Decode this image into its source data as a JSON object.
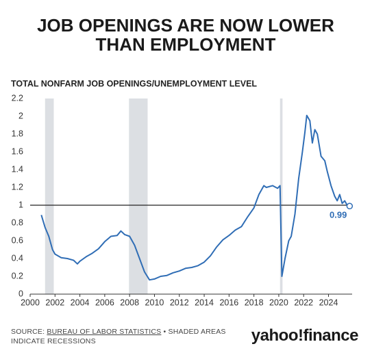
{
  "chart_data": {
    "type": "line",
    "title": [
      "JOB OPENINGS ARE NOW LOWER",
      "THAN EMPLOYMENT"
    ],
    "subtitle": "TOTAL NONFARM JOB OPENINGS/UNEMPLOYMENT LEVEL",
    "x": [
      2000.9,
      2001.2,
      2001.5,
      2001.8,
      2002.0,
      2002.5,
      2003.0,
      2003.5,
      2003.8,
      2004.0,
      2004.5,
      2005.0,
      2005.5,
      2006.0,
      2006.5,
      2007.0,
      2007.3,
      2007.6,
      2008.0,
      2008.4,
      2008.8,
      2009.2,
      2009.6,
      2010.0,
      2010.5,
      2011.0,
      2011.5,
      2012.0,
      2012.5,
      2013.0,
      2013.5,
      2014.0,
      2014.5,
      2015.0,
      2015.5,
      2016.0,
      2016.5,
      2017.0,
      2017.5,
      2018.0,
      2018.4,
      2018.8,
      2019.0,
      2019.5,
      2019.9,
      2020.1,
      2020.25,
      2020.5,
      2020.8,
      2021.0,
      2021.3,
      2021.6,
      2021.9,
      2022.1,
      2022.25,
      2022.5,
      2022.7,
      2022.9,
      2023.1,
      2023.4,
      2023.7,
      2023.9,
      2024.2,
      2024.5,
      2024.7,
      2024.9,
      2025.1,
      2025.3,
      2025.5,
      2025.7
    ],
    "series": [
      {
        "name": "Job openings/unemployment level",
        "color": "#2f6db5",
        "values": [
          0.89,
          0.75,
          0.65,
          0.5,
          0.45,
          0.41,
          0.4,
          0.38,
          0.34,
          0.37,
          0.42,
          0.46,
          0.51,
          0.59,
          0.65,
          0.66,
          0.71,
          0.67,
          0.65,
          0.55,
          0.4,
          0.25,
          0.16,
          0.17,
          0.2,
          0.21,
          0.24,
          0.26,
          0.29,
          0.3,
          0.32,
          0.36,
          0.43,
          0.53,
          0.61,
          0.66,
          0.72,
          0.76,
          0.87,
          0.97,
          1.12,
          1.22,
          1.2,
          1.22,
          1.19,
          1.22,
          0.2,
          0.4,
          0.6,
          0.65,
          0.9,
          1.3,
          1.6,
          1.82,
          2.01,
          1.95,
          1.7,
          1.85,
          1.8,
          1.55,
          1.5,
          1.38,
          1.22,
          1.1,
          1.05,
          1.12,
          1.02,
          1.05,
          1.0,
          0.99
        ]
      }
    ],
    "recessions": [
      [
        2001.2,
        2001.9
      ],
      [
        2007.95,
        2009.45
      ],
      [
        2020.1,
        2020.3
      ]
    ],
    "reference_line": 1,
    "xlim": [
      2000,
      2025.9
    ],
    "ylim": [
      0,
      2.2
    ],
    "xticks": [
      2000,
      2002,
      2004,
      2006,
      2008,
      2010,
      2012,
      2014,
      2016,
      2018,
      2020,
      2022,
      2024
    ],
    "yticks": [
      0,
      0.2,
      0.4,
      0.6,
      0.8,
      1,
      1.2,
      1.4,
      1.6,
      1.8,
      2,
      2.2
    ],
    "grid": false,
    "source": [
      "SOURCE:",
      "BUREAU OF LABOR STATISTICS",
      "• SHADED AREAS INDICATE RECESSIONS"
    ],
    "logo": "yahoo!finance"
  }
}
